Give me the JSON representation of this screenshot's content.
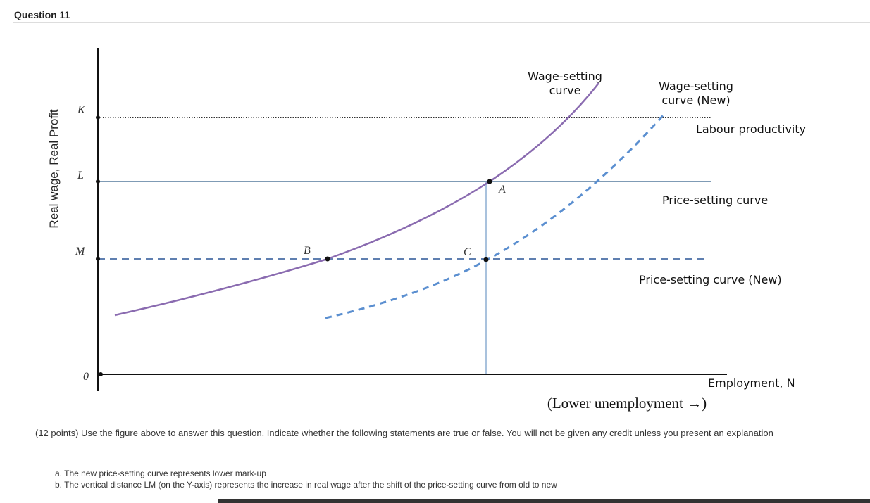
{
  "header": {
    "title": "Question 11"
  },
  "figure": {
    "y_axis_label": "Real wage, Real Profit",
    "y_labels": [
      "K",
      "L",
      "M",
      "0"
    ],
    "points": [
      "A",
      "B",
      "C"
    ],
    "wage_curve_label": [
      "Wage-setting",
      "curve"
    ],
    "wage_curve_new_label": [
      "Wage-setting",
      "curve (New)"
    ],
    "labour_productivity": "Labour productivity",
    "price_curve_label": "Price-setting curve",
    "price_curve_new_label": "Price-setting curve (New)",
    "x_axis_label": "Employment, N",
    "x_axis_note": "(Lower unemployment →)"
  },
  "question": {
    "text": "(12 points) Use the figure above to answer this question. Indicate whether the following statements are true or false. You will not be given any credit unless you present an explanation",
    "items": [
      "a. The new price-setting curve represents lower mark-up",
      "b. The vertical distance LM (on the Y-axis) represents the increase in real wage after the shift of the price-setting curve from old to new"
    ]
  }
}
